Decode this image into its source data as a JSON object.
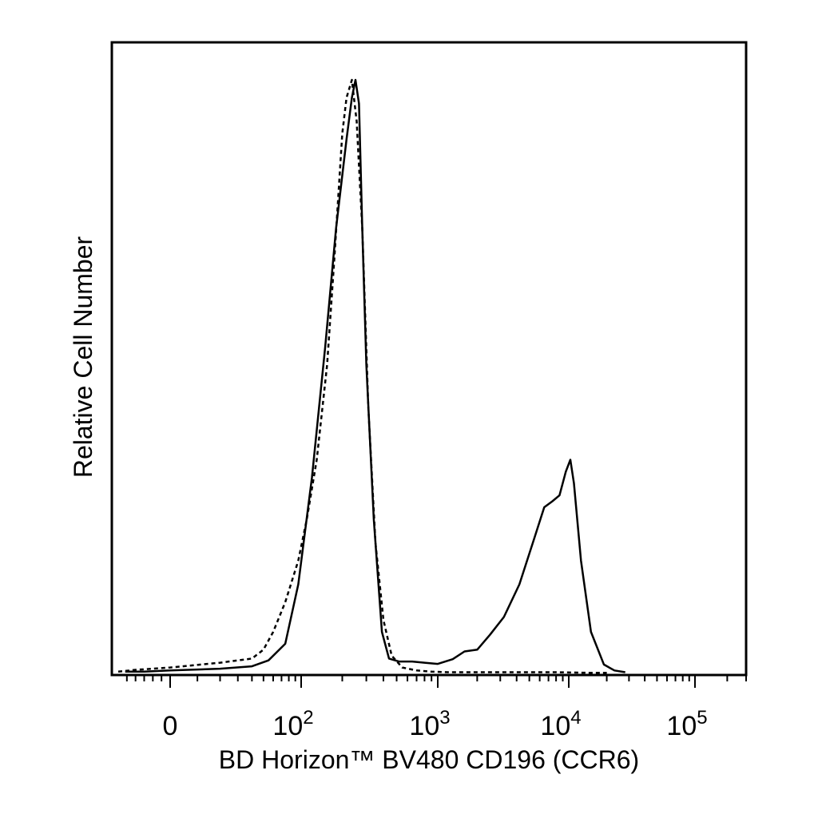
{
  "chart_data": {
    "type": "line",
    "title": "",
    "xlabel": "BD Horizon™ BV480 CD196 (CCR6)",
    "ylabel": "Relative Cell Number",
    "x_scale": "biexponential",
    "xlim": [
      -60,
      100000
    ],
    "ylim": [
      0,
      1
    ],
    "grid": false,
    "legend": "none",
    "x_ticks": [
      {
        "value": 0,
        "base": "0",
        "exp": ""
      },
      {
        "value": 100,
        "base": "10",
        "exp": "2"
      },
      {
        "value": 1000,
        "base": "10",
        "exp": "3"
      },
      {
        "value": 10000,
        "base": "10",
        "exp": "4"
      },
      {
        "value": 100000,
        "base": "10",
        "exp": "5"
      }
    ],
    "series": [
      {
        "style": "solid",
        "x": [
          -52,
          -30,
          0,
          20,
          40,
          55,
          75,
          95,
          120,
          150,
          180,
          215,
          235,
          250,
          265,
          280,
          300,
          340,
          390,
          440,
          520,
          650,
          800,
          1000,
          1300,
          1600,
          2000,
          2500,
          3200,
          4200,
          5500,
          6500,
          7500,
          8500,
          9500,
          10300,
          11000,
          12500,
          15000,
          19000,
          23000,
          28000
        ],
        "y": [
          0.003,
          0.003,
          0.005,
          0.008,
          0.012,
          0.022,
          0.05,
          0.15,
          0.33,
          0.55,
          0.75,
          0.9,
          0.97,
          1.0,
          0.96,
          0.75,
          0.52,
          0.26,
          0.07,
          0.025,
          0.02,
          0.02,
          0.018,
          0.016,
          0.024,
          0.037,
          0.04,
          0.065,
          0.095,
          0.15,
          0.23,
          0.28,
          0.29,
          0.3,
          0.34,
          0.36,
          0.32,
          0.19,
          0.07,
          0.015,
          0.005,
          0.002
        ]
      },
      {
        "style": "dashed",
        "x": [
          -60,
          -40,
          -20,
          0,
          20,
          40,
          50,
          60,
          75,
          95,
          110,
          130,
          155,
          175,
          200,
          215,
          235,
          255,
          280,
          310,
          350,
          400,
          460,
          550,
          700,
          900,
          1200,
          2000,
          4000,
          8000,
          15000,
          20000
        ],
        "y": [
          0.003,
          0.006,
          0.008,
          0.01,
          0.018,
          0.025,
          0.04,
          0.07,
          0.12,
          0.19,
          0.26,
          0.36,
          0.52,
          0.7,
          0.91,
          0.97,
          1.0,
          0.93,
          0.75,
          0.45,
          0.22,
          0.09,
          0.03,
          0.01,
          0.005,
          0.003,
          0.002,
          0.002,
          0.002,
          0.002,
          0.001,
          0.001
        ]
      }
    ]
  }
}
